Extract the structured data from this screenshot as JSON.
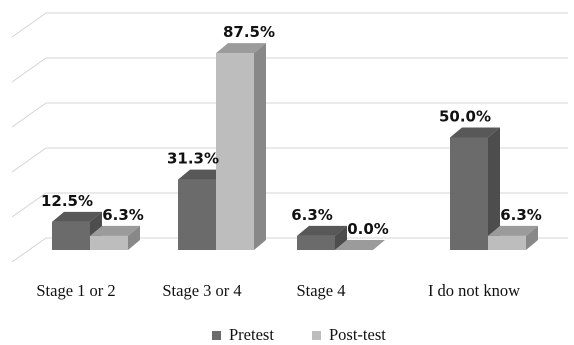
{
  "chart_data": {
    "type": "bar",
    "style": "3d-clustered-column",
    "title": "",
    "xlabel": "",
    "ylabel": "",
    "ylim": [
      0,
      100
    ],
    "y_axis_labels_shown": false,
    "grid": true,
    "legend_position": "bottom",
    "categories": [
      "Stage 1 or 2",
      "Stage 3 or 4",
      "Stage 4",
      "I do not know"
    ],
    "series": [
      {
        "name": "Pretest",
        "values": [
          12.5,
          31.3,
          6.3,
          50.0
        ],
        "labels": [
          "12.5%",
          "31.3%",
          "6.3%",
          "50.0%"
        ],
        "color": "#6b6b6b"
      },
      {
        "name": "Post-test",
        "values": [
          6.3,
          87.5,
          0.0,
          6.3
        ],
        "labels": [
          "6.3%",
          "87.5%",
          "0.0%",
          "6.3%"
        ],
        "color": "#bdbdbd"
      }
    ]
  }
}
